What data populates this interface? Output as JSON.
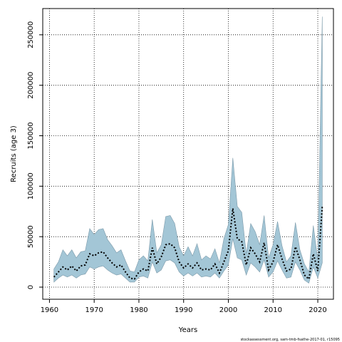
{
  "chart_data": {
    "type": "area",
    "xlabel": "Years",
    "ylabel": "Recruits (age 3)",
    "credit": "stockassessment.org, sam-tmb-fsathe-2017-01, r15095",
    "xlim": [
      1958.5,
      2023.5
    ],
    "ylim": [
      -12000,
      276000
    ],
    "x_ticks": [
      1960,
      1970,
      1980,
      1990,
      2000,
      2010,
      2020
    ],
    "y_ticks": [
      0,
      50000,
      100000,
      150000,
      200000,
      250000
    ],
    "grid": true,
    "colors": {
      "band": "#a3c6d6",
      "band_edge": "#7c9aaa",
      "estimate": "#000000",
      "grid": "#000000"
    },
    "years": [
      1961,
      1962,
      1963,
      1964,
      1965,
      1966,
      1967,
      1968,
      1969,
      1970,
      1971,
      1972,
      1973,
      1974,
      1975,
      1976,
      1977,
      1978,
      1979,
      1980,
      1981,
      1982,
      1983,
      1984,
      1985,
      1986,
      1987,
      1988,
      1989,
      1990,
      1991,
      1992,
      1993,
      1994,
      1995,
      1996,
      1997,
      1998,
      1999,
      2000,
      2001,
      2002,
      2003,
      2004,
      2005,
      2006,
      2007,
      2008,
      2009,
      2010,
      2011,
      2012,
      2013,
      2014,
      2015,
      2016,
      2017,
      2018,
      2019,
      2020,
      2021
    ],
    "estimate": [
      10000,
      15000,
      20000,
      17000,
      21000,
      16000,
      21000,
      22000,
      33000,
      31000,
      34000,
      35000,
      29000,
      24000,
      20000,
      22000,
      15000,
      9000,
      8000,
      15000,
      18000,
      16000,
      39000,
      23000,
      30000,
      42000,
      43000,
      39000,
      25000,
      19000,
      23000,
      19000,
      24000,
      17000,
      18000,
      17000,
      23000,
      14000,
      25000,
      36000,
      78000,
      48000,
      45000,
      22000,
      39000,
      33000,
      25000,
      44000,
      17000,
      25000,
      42000,
      28000,
      16000,
      18000,
      40000,
      27000,
      12000,
      8000,
      33000,
      16000,
      80000
    ],
    "upper": [
      18000,
      25000,
      37000,
      31000,
      37000,
      29000,
      35000,
      36000,
      58000,
      52000,
      57000,
      58000,
      47000,
      41000,
      34000,
      37000,
      26000,
      16000,
      15000,
      27000,
      31000,
      26000,
      67000,
      34000,
      42000,
      70000,
      71000,
      63000,
      40000,
      31000,
      40000,
      31000,
      43000,
      27000,
      31000,
      28000,
      38000,
      24000,
      48000,
      62000,
      128000,
      80000,
      74000,
      33000,
      63000,
      55000,
      42000,
      71000,
      29000,
      42000,
      65000,
      41000,
      25000,
      31000,
      64000,
      37000,
      23000,
      15000,
      61000,
      27000,
      268000
    ],
    "lower": [
      5000,
      9000,
      12000,
      10000,
      12000,
      9000,
      12000,
      13000,
      20000,
      18000,
      20000,
      21000,
      17000,
      14000,
      12000,
      13000,
      9000,
      5000,
      5000,
      10000,
      11000,
      9000,
      25000,
      14000,
      17000,
      26000,
      27000,
      24000,
      15000,
      11000,
      14000,
      11000,
      14000,
      10000,
      11000,
      10000,
      14000,
      9000,
      16000,
      22000,
      48000,
      29000,
      27000,
      12000,
      24000,
      20000,
      15000,
      27000,
      10000,
      15000,
      26000,
      17000,
      9000,
      10000,
      25000,
      17000,
      7000,
      4000,
      20000,
      9000,
      24000
    ]
  }
}
